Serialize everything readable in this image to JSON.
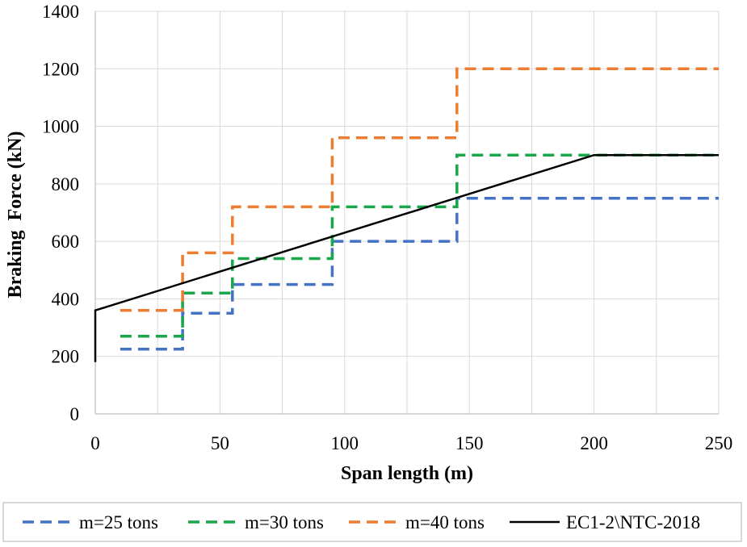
{
  "chart_data": {
    "type": "line",
    "title": "",
    "xlabel": "Span length (m)",
    "ylabel": "Braking  Force (kN)",
    "xlim": [
      0,
      250
    ],
    "ylim": [
      0,
      1400
    ],
    "xticks": [
      0,
      50,
      100,
      150,
      200,
      250
    ],
    "yticks": [
      0,
      200,
      400,
      600,
      800,
      1000,
      1200,
      1400
    ],
    "grid": true,
    "legend_position": "bottom",
    "series": [
      {
        "name": "m=25 tons",
        "color": "#4472c4",
        "dash": "dashed",
        "step": true,
        "x": [
          10,
          35,
          35,
          55,
          55,
          95,
          95,
          145,
          145,
          250
        ],
        "y": [
          225,
          225,
          350,
          350,
          450,
          450,
          600,
          600,
          750,
          750
        ]
      },
      {
        "name": "m=30 tons",
        "color": "#1aa64a",
        "dash": "dashed",
        "step": true,
        "x": [
          10,
          35,
          35,
          55,
          55,
          95,
          95,
          145,
          145,
          250
        ],
        "y": [
          270,
          270,
          420,
          420,
          540,
          540,
          720,
          720,
          900,
          900
        ]
      },
      {
        "name": "m=40 tons",
        "color": "#ed7d31",
        "dash": "dashed",
        "step": true,
        "x": [
          10,
          35,
          35,
          55,
          55,
          95,
          95,
          145,
          145,
          250
        ],
        "y": [
          360,
          360,
          560,
          560,
          720,
          720,
          960,
          960,
          1200,
          1200
        ]
      },
      {
        "name": "EC1-2\\NTC-2018",
        "color": "#000000",
        "dash": "solid",
        "step": false,
        "x": [
          0,
          0,
          200,
          250
        ],
        "y": [
          180,
          360,
          900,
          900
        ]
      }
    ]
  }
}
